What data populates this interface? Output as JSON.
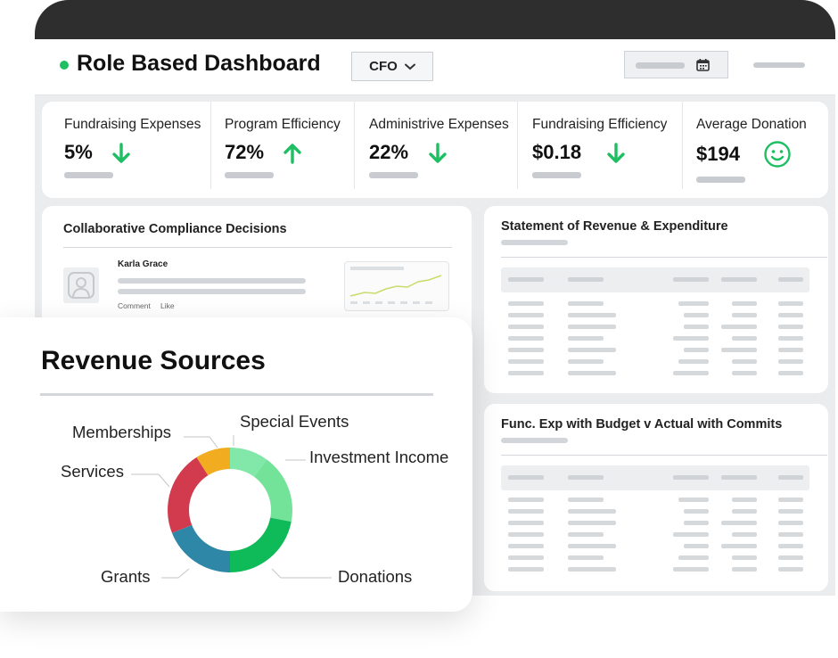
{
  "header": {
    "title": "Role Based Dashboard",
    "role_selector": "CFO",
    "status_color": "#1dbf62"
  },
  "kpis": [
    {
      "label": "Fundraising Expenses",
      "value": "5%",
      "trend": "down",
      "trend_color": "#1dbf62"
    },
    {
      "label": "Program Efficiency",
      "value": "72%",
      "trend": "up",
      "trend_color": "#1dbf62"
    },
    {
      "label": "Administrive Expenses",
      "value": "22%",
      "trend": "down",
      "trend_color": "#1dbf62"
    },
    {
      "label": "Fundraising Efficiency",
      "value": "$0.18",
      "trend": "down",
      "trend_color": "#1dbf62"
    },
    {
      "label": "Average Donation",
      "value": "$194",
      "trend": "smiley-face-icon",
      "trend_color": "#1dbf62"
    }
  ],
  "compliance": {
    "title": "Collaborative Compliance Decisions",
    "author": "Karla Grace",
    "comment_label": "Comment",
    "like_label": "Like"
  },
  "statement": {
    "title": "Statement of Revenue & Expenditure"
  },
  "budget": {
    "title": "Func. Exp with Budget v Actual with Commits"
  },
  "revenue_sources": {
    "title": "Revenue Sources"
  },
  "chart_data": {
    "type": "pie",
    "title": "Revenue Sources",
    "donut": true,
    "labels": [
      "Special Events",
      "Investment Income",
      "Donations",
      "Grants",
      "Services",
      "Memberships"
    ],
    "values": [
      10,
      18,
      22,
      19,
      22,
      9
    ],
    "colors": [
      "#81e8a9",
      "#74e39a",
      "#0fba59",
      "#2f87a8",
      "#d23a4e",
      "#f2ac1f"
    ]
  }
}
